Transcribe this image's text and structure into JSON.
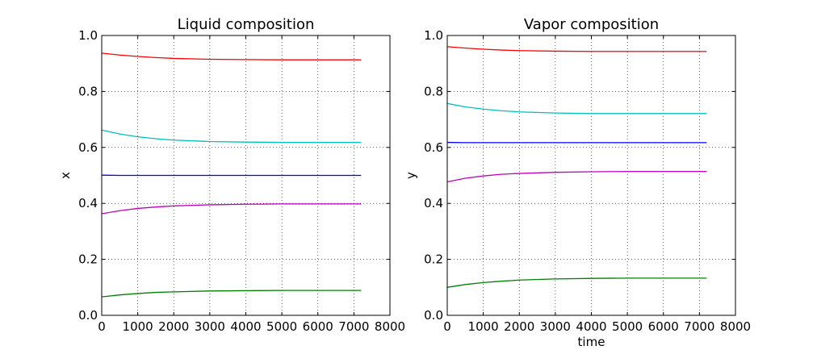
{
  "chart_data": [
    {
      "type": "line",
      "title": "Liquid composition",
      "xlabel": "",
      "ylabel": "x",
      "xlim": [
        0,
        8000
      ],
      "ylim": [
        0.0,
        1.0
      ],
      "xticks": [
        "0",
        "1000",
        "2000",
        "3000",
        "4000",
        "5000",
        "6000",
        "7000",
        "8000"
      ],
      "yticks": [
        "0.0",
        "0.2",
        "0.4",
        "0.6",
        "0.8",
        "1.0"
      ],
      "grid": true,
      "x": [
        0,
        500,
        1000,
        1500,
        2000,
        3000,
        4000,
        5000,
        6000,
        7200
      ],
      "series": [
        {
          "color": "#ff0000",
          "values": [
            0.937,
            0.93,
            0.925,
            0.921,
            0.918,
            0.915,
            0.914,
            0.913,
            0.913,
            0.913
          ]
        },
        {
          "color": "#00bfbf",
          "values": [
            0.662,
            0.648,
            0.638,
            0.631,
            0.626,
            0.621,
            0.619,
            0.618,
            0.618,
            0.618
          ]
        },
        {
          "color": "#0000ff",
          "values": [
            0.501,
            0.5,
            0.5,
            0.5,
            0.5,
            0.5,
            0.5,
            0.5,
            0.5,
            0.5
          ]
        },
        {
          "color": "#bf00bf",
          "values": [
            0.363,
            0.374,
            0.382,
            0.387,
            0.391,
            0.395,
            0.397,
            0.398,
            0.398,
            0.398
          ]
        },
        {
          "color": "#008000",
          "values": [
            0.066,
            0.073,
            0.078,
            0.082,
            0.084,
            0.087,
            0.088,
            0.089,
            0.089,
            0.089
          ]
        }
      ]
    },
    {
      "type": "line",
      "title": "Vapor composition",
      "xlabel": "time",
      "ylabel": "y",
      "xlim": [
        0,
        8000
      ],
      "ylim": [
        0.0,
        1.0
      ],
      "xticks": [
        "0",
        "1000",
        "2000",
        "3000",
        "4000",
        "5000",
        "6000",
        "7000",
        "8000"
      ],
      "yticks": [
        "0.0",
        "0.2",
        "0.4",
        "0.6",
        "0.8",
        "1.0"
      ],
      "grid": true,
      "x": [
        0,
        500,
        1000,
        1500,
        2000,
        3000,
        4000,
        5000,
        6000,
        7200
      ],
      "series": [
        {
          "color": "#ff0000",
          "values": [
            0.96,
            0.955,
            0.951,
            0.948,
            0.946,
            0.944,
            0.943,
            0.943,
            0.943,
            0.943
          ]
        },
        {
          "color": "#00bfbf",
          "values": [
            0.757,
            0.745,
            0.737,
            0.731,
            0.727,
            0.723,
            0.721,
            0.721,
            0.721,
            0.721
          ]
        },
        {
          "color": "#0000ff",
          "values": [
            0.618,
            0.617,
            0.617,
            0.617,
            0.617,
            0.617,
            0.617,
            0.617,
            0.617,
            0.617
          ]
        },
        {
          "color": "#bf00bf",
          "values": [
            0.477,
            0.49,
            0.498,
            0.504,
            0.507,
            0.511,
            0.513,
            0.514,
            0.514,
            0.514
          ]
        },
        {
          "color": "#008000",
          "values": [
            0.1,
            0.11,
            0.117,
            0.122,
            0.126,
            0.13,
            0.132,
            0.133,
            0.133,
            0.133
          ]
        }
      ]
    }
  ]
}
